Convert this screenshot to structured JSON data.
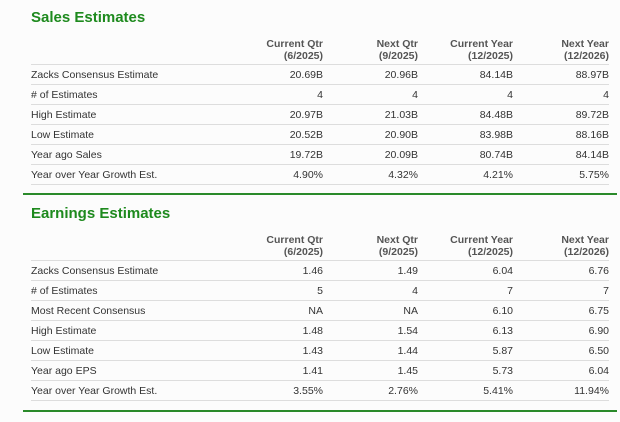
{
  "colors": {
    "accent": "#1e8a1e",
    "rule": "#2a8a2a"
  },
  "sales": {
    "title": "Sales Estimates",
    "columns": [
      {
        "line1": "Current Qtr",
        "line2": "(6/2025)"
      },
      {
        "line1": "Next Qtr",
        "line2": "(9/2025)"
      },
      {
        "line1": "Current Year",
        "line2": "(12/2025)"
      },
      {
        "line1": "Next Year",
        "line2": "(12/2026)"
      }
    ],
    "rows": [
      {
        "label": "Zacks Consensus Estimate",
        "values": [
          "20.69B",
          "20.96B",
          "84.14B",
          "88.97B"
        ]
      },
      {
        "label": "# of Estimates",
        "values": [
          "4",
          "4",
          "4",
          "4"
        ]
      },
      {
        "label": "High Estimate",
        "values": [
          "20.97B",
          "21.03B",
          "84.48B",
          "89.72B"
        ]
      },
      {
        "label": "Low Estimate",
        "values": [
          "20.52B",
          "20.90B",
          "83.98B",
          "88.16B"
        ]
      },
      {
        "label": "Year ago Sales",
        "values": [
          "19.72B",
          "20.09B",
          "80.74B",
          "84.14B"
        ]
      },
      {
        "label": "Year over Year Growth Est.",
        "values": [
          "4.90%",
          "4.32%",
          "4.21%",
          "5.75%"
        ]
      }
    ]
  },
  "earnings": {
    "title": "Earnings Estimates",
    "columns": [
      {
        "line1": "Current Qtr",
        "line2": "(6/2025)"
      },
      {
        "line1": "Next Qtr",
        "line2": "(9/2025)"
      },
      {
        "line1": "Current Year",
        "line2": "(12/2025)"
      },
      {
        "line1": "Next Year",
        "line2": "(12/2026)"
      }
    ],
    "rows": [
      {
        "label": "Zacks Consensus Estimate",
        "values": [
          "1.46",
          "1.49",
          "6.04",
          "6.76"
        ]
      },
      {
        "label": "# of Estimates",
        "values": [
          "5",
          "4",
          "7",
          "7"
        ]
      },
      {
        "label": "Most Recent Consensus",
        "values": [
          "NA",
          "NA",
          "6.10",
          "6.75"
        ]
      },
      {
        "label": "High Estimate",
        "values": [
          "1.48",
          "1.54",
          "6.13",
          "6.90"
        ]
      },
      {
        "label": "Low Estimate",
        "values": [
          "1.43",
          "1.44",
          "5.87",
          "6.50"
        ]
      },
      {
        "label": "Year ago EPS",
        "values": [
          "1.41",
          "1.45",
          "5.73",
          "6.04"
        ]
      },
      {
        "label": "Year over Year Growth Est.",
        "values": [
          "3.55%",
          "2.76%",
          "5.41%",
          "11.94%"
        ]
      }
    ]
  }
}
